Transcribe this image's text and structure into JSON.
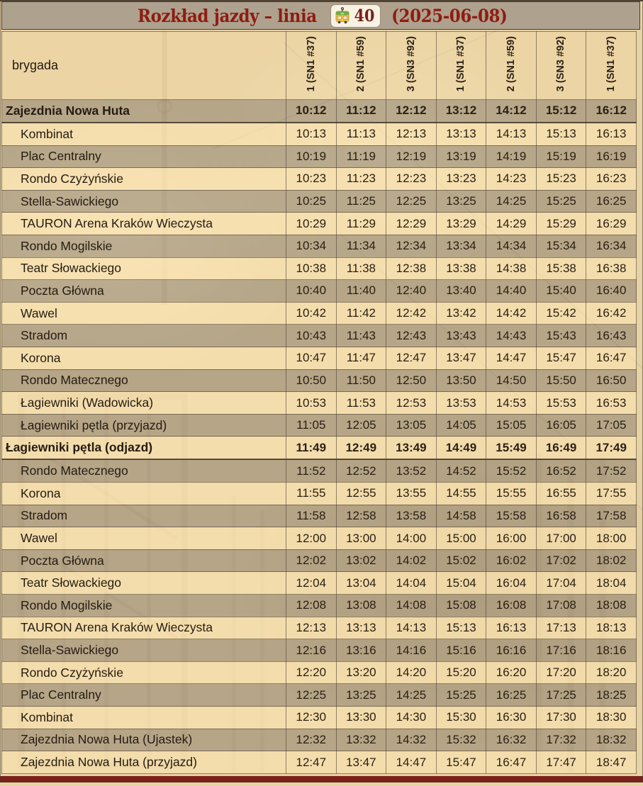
{
  "header": {
    "title_prefix": "Rozkład jazdy – linia",
    "line_badge": {
      "icon": "tram-icon",
      "number": "40"
    },
    "date_suffix": "(2025-06-08)"
  },
  "table": {
    "corner_label": "brygada",
    "columns": [
      "1 (SN1 #37)",
      "2 (SN1 #59)",
      "3 (SN3 #92)",
      "1 (SN1 #37)",
      "2 (SN1 #59)",
      "3 (SN3 #92)",
      "1 (SN1 #37)"
    ],
    "rows": [
      {
        "stop": "Zajezdnia Nowa Huta",
        "bold": true,
        "times": [
          "10:12",
          "11:12",
          "12:12",
          "13:12",
          "14:12",
          "15:12",
          "16:12"
        ]
      },
      {
        "stop": "Kombinat",
        "bold": false,
        "times": [
          "10:13",
          "11:13",
          "12:13",
          "13:13",
          "14:13",
          "15:13",
          "16:13"
        ]
      },
      {
        "stop": "Plac Centralny",
        "bold": false,
        "times": [
          "10:19",
          "11:19",
          "12:19",
          "13:19",
          "14:19",
          "15:19",
          "16:19"
        ]
      },
      {
        "stop": "Rondo Czyżyńskie",
        "bold": false,
        "times": [
          "10:23",
          "11:23",
          "12:23",
          "13:23",
          "14:23",
          "15:23",
          "16:23"
        ]
      },
      {
        "stop": "Stella-Sawickiego",
        "bold": false,
        "times": [
          "10:25",
          "11:25",
          "12:25",
          "13:25",
          "14:25",
          "15:25",
          "16:25"
        ]
      },
      {
        "stop": "TAURON Arena Kraków Wieczysta",
        "bold": false,
        "times": [
          "10:29",
          "11:29",
          "12:29",
          "13:29",
          "14:29",
          "15:29",
          "16:29"
        ]
      },
      {
        "stop": "Rondo Mogilskie",
        "bold": false,
        "times": [
          "10:34",
          "11:34",
          "12:34",
          "13:34",
          "14:34",
          "15:34",
          "16:34"
        ]
      },
      {
        "stop": "Teatr Słowackiego",
        "bold": false,
        "times": [
          "10:38",
          "11:38",
          "12:38",
          "13:38",
          "14:38",
          "15:38",
          "16:38"
        ]
      },
      {
        "stop": "Poczta Główna",
        "bold": false,
        "times": [
          "10:40",
          "11:40",
          "12:40",
          "13:40",
          "14:40",
          "15:40",
          "16:40"
        ]
      },
      {
        "stop": "Wawel",
        "bold": false,
        "times": [
          "10:42",
          "11:42",
          "12:42",
          "13:42",
          "14:42",
          "15:42",
          "16:42"
        ]
      },
      {
        "stop": "Stradom",
        "bold": false,
        "times": [
          "10:43",
          "11:43",
          "12:43",
          "13:43",
          "14:43",
          "15:43",
          "16:43"
        ]
      },
      {
        "stop": "Korona",
        "bold": false,
        "times": [
          "10:47",
          "11:47",
          "12:47",
          "13:47",
          "14:47",
          "15:47",
          "16:47"
        ]
      },
      {
        "stop": "Rondo Matecznego",
        "bold": false,
        "times": [
          "10:50",
          "11:50",
          "12:50",
          "13:50",
          "14:50",
          "15:50",
          "16:50"
        ]
      },
      {
        "stop": "Łagiewniki (Wadowicka)",
        "bold": false,
        "times": [
          "10:53",
          "11:53",
          "12:53",
          "13:53",
          "14:53",
          "15:53",
          "16:53"
        ]
      },
      {
        "stop": "Łagiewniki pętla (przyjazd)",
        "bold": false,
        "times": [
          "11:05",
          "12:05",
          "13:05",
          "14:05",
          "15:05",
          "16:05",
          "17:05"
        ]
      },
      {
        "stop": "Łagiewniki pętla (odjazd)",
        "bold": true,
        "times": [
          "11:49",
          "12:49",
          "13:49",
          "14:49",
          "15:49",
          "16:49",
          "17:49"
        ]
      },
      {
        "stop": "Rondo Matecznego",
        "bold": false,
        "times": [
          "11:52",
          "12:52",
          "13:52",
          "14:52",
          "15:52",
          "16:52",
          "17:52"
        ]
      },
      {
        "stop": "Korona",
        "bold": false,
        "times": [
          "11:55",
          "12:55",
          "13:55",
          "14:55",
          "15:55",
          "16:55",
          "17:55"
        ]
      },
      {
        "stop": "Stradom",
        "bold": false,
        "times": [
          "11:58",
          "12:58",
          "13:58",
          "14:58",
          "15:58",
          "16:58",
          "17:58"
        ]
      },
      {
        "stop": "Wawel",
        "bold": false,
        "times": [
          "12:00",
          "13:00",
          "14:00",
          "15:00",
          "16:00",
          "17:00",
          "18:00"
        ]
      },
      {
        "stop": "Poczta Główna",
        "bold": false,
        "times": [
          "12:02",
          "13:02",
          "14:02",
          "15:02",
          "16:02",
          "17:02",
          "18:02"
        ]
      },
      {
        "stop": "Teatr Słowackiego",
        "bold": false,
        "times": [
          "12:04",
          "13:04",
          "14:04",
          "15:04",
          "16:04",
          "17:04",
          "18:04"
        ]
      },
      {
        "stop": "Rondo Mogilskie",
        "bold": false,
        "times": [
          "12:08",
          "13:08",
          "14:08",
          "15:08",
          "16:08",
          "17:08",
          "18:08"
        ]
      },
      {
        "stop": "TAURON Arena Kraków Wieczysta",
        "bold": false,
        "times": [
          "12:13",
          "13:13",
          "14:13",
          "15:13",
          "16:13",
          "17:13",
          "18:13"
        ]
      },
      {
        "stop": "Stella-Sawickiego",
        "bold": false,
        "times": [
          "12:16",
          "13:16",
          "14:16",
          "15:16",
          "16:16",
          "17:16",
          "18:16"
        ]
      },
      {
        "stop": "Rondo Czyżyńskie",
        "bold": false,
        "times": [
          "12:20",
          "13:20",
          "14:20",
          "15:20",
          "16:20",
          "17:20",
          "18:20"
        ]
      },
      {
        "stop": "Plac Centralny",
        "bold": false,
        "times": [
          "12:25",
          "13:25",
          "14:25",
          "15:25",
          "16:25",
          "17:25",
          "18:25"
        ]
      },
      {
        "stop": "Kombinat",
        "bold": false,
        "times": [
          "12:30",
          "13:30",
          "14:30",
          "15:30",
          "16:30",
          "17:30",
          "18:30"
        ]
      },
      {
        "stop": "Zajezdnia Nowa Huta (Ujastek)",
        "bold": false,
        "times": [
          "12:32",
          "13:32",
          "14:32",
          "15:32",
          "16:32",
          "17:32",
          "18:32"
        ]
      },
      {
        "stop": "Zajezdnia Nowa Huta (przyjazd)",
        "bold": false,
        "times": [
          "12:47",
          "13:47",
          "14:47",
          "15:47",
          "16:47",
          "17:47",
          "18:47"
        ]
      }
    ]
  },
  "colors": {
    "accent_red": "#8d1d12",
    "bottom_bar": "#7b2018",
    "title_bar": "#c3b7a7",
    "row_tan": "#eedbb2",
    "row_gray": "#b7ada0",
    "badge_bg": "#f7f2e4"
  }
}
